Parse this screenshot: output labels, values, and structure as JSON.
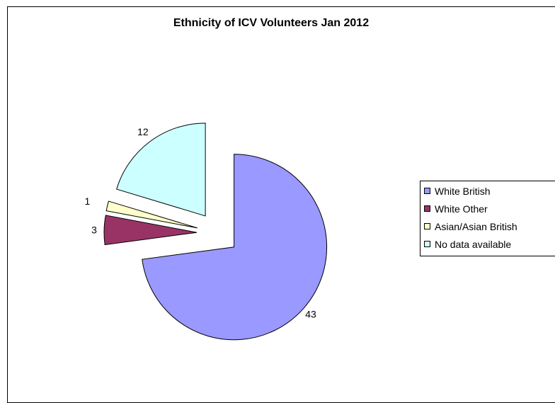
{
  "chart_data": {
    "type": "pie",
    "title": "Ethnicity of ICV Volunteers Jan 2012",
    "categories": [
      "White British",
      "White Other",
      "Asian/Asian British",
      "No data available"
    ],
    "values": [
      43,
      3,
      1,
      12
    ],
    "colors": [
      "#9999ff",
      "#993366",
      "#ffffcc",
      "#ccffff"
    ],
    "exploded": true,
    "legend_position": "right"
  }
}
